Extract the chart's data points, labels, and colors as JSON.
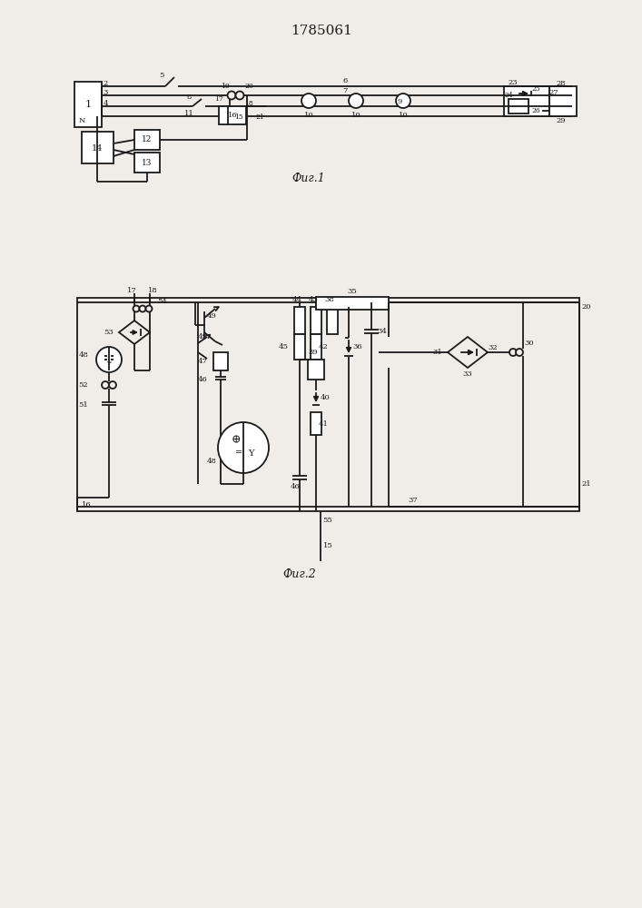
{
  "title": "1785061",
  "fig1_label": "Фиг.1",
  "fig2_label": "Фиг.2",
  "bg_color": "#f0ede8",
  "line_color": "#1a1a1a",
  "line_width": 1.3
}
